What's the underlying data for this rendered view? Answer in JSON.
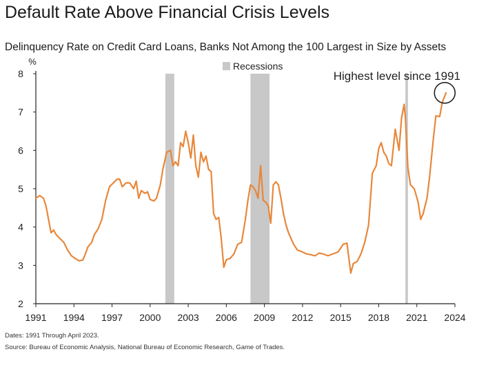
{
  "title": "Default Rate Above Financial Crisis Levels",
  "subtitle": "Delinquency Rate on Credit Card Loans, Banks Not Among the 100 Largest in Size by Assets",
  "notes": {
    "dates": "Dates: 1991 Through April 2023.",
    "source": "Source: Bureau of Economic Analysis, National Bureau of Economic Research, Game of Trades."
  },
  "colors": {
    "line": "#e8873a",
    "recession": "#c8c8c8",
    "axis": "#222222"
  },
  "chart_data": {
    "type": "line",
    "title": "Default Rate Above Financial Crisis Levels",
    "subtitle": "Delinquency Rate on Credit Card Loans, Banks Not Among the 100 Largest in Size by Assets",
    "ylabel": "%",
    "xlabel": "",
    "xlim": [
      1991,
      2024
    ],
    "ylim": [
      2,
      8
    ],
    "x_ticks": [
      1991,
      1994,
      1997,
      2000,
      2003,
      2006,
      2009,
      2012,
      2015,
      2018,
      2021,
      2024
    ],
    "y_ticks": [
      2,
      3,
      4,
      5,
      6,
      7,
      8
    ],
    "grid": false,
    "legend": {
      "position": "top-center",
      "entries": [
        {
          "label": "Recessions",
          "color": "#c8c8c8"
        }
      ]
    },
    "recessions": [
      [
        2001.2,
        2001.9
      ],
      [
        2007.9,
        2009.4
      ],
      [
        2020.1,
        2020.3
      ]
    ],
    "annotation": {
      "text": "Highest level since 1991",
      "x": 2023.2,
      "y": 7.5
    },
    "series": [
      {
        "color": "#e8873a",
        "points": [
          [
            1991.0,
            4.75
          ],
          [
            1991.3,
            4.82
          ],
          [
            1991.6,
            4.75
          ],
          [
            1991.8,
            4.55
          ],
          [
            1992.0,
            4.2
          ],
          [
            1992.2,
            3.85
          ],
          [
            1992.4,
            3.92
          ],
          [
            1992.6,
            3.8
          ],
          [
            1992.9,
            3.7
          ],
          [
            1993.2,
            3.6
          ],
          [
            1993.5,
            3.4
          ],
          [
            1993.8,
            3.25
          ],
          [
            1994.1,
            3.18
          ],
          [
            1994.4,
            3.12
          ],
          [
            1994.7,
            3.14
          ],
          [
            1994.9,
            3.3
          ],
          [
            1995.1,
            3.48
          ],
          [
            1995.4,
            3.6
          ],
          [
            1995.6,
            3.8
          ],
          [
            1995.9,
            3.95
          ],
          [
            1996.2,
            4.2
          ],
          [
            1996.5,
            4.7
          ],
          [
            1996.8,
            5.05
          ],
          [
            1997.1,
            5.15
          ],
          [
            1997.4,
            5.25
          ],
          [
            1997.6,
            5.25
          ],
          [
            1997.8,
            5.05
          ],
          [
            1998.1,
            5.15
          ],
          [
            1998.4,
            5.15
          ],
          [
            1998.7,
            5.0
          ],
          [
            1998.9,
            5.2
          ],
          [
            1999.1,
            4.75
          ],
          [
            1999.3,
            4.95
          ],
          [
            1999.6,
            4.88
          ],
          [
            1999.8,
            4.92
          ],
          [
            2000.0,
            4.72
          ],
          [
            2000.3,
            4.68
          ],
          [
            2000.5,
            4.75
          ],
          [
            2000.8,
            5.1
          ],
          [
            2001.0,
            5.5
          ],
          [
            2001.3,
            5.95
          ],
          [
            2001.6,
            6.0
          ],
          [
            2001.8,
            5.6
          ],
          [
            2002.0,
            5.7
          ],
          [
            2002.2,
            5.6
          ],
          [
            2002.4,
            6.2
          ],
          [
            2002.6,
            6.1
          ],
          [
            2002.8,
            6.5
          ],
          [
            2003.0,
            6.2
          ],
          [
            2003.2,
            5.8
          ],
          [
            2003.4,
            6.4
          ],
          [
            2003.6,
            5.6
          ],
          [
            2003.8,
            5.3
          ],
          [
            2004.0,
            5.95
          ],
          [
            2004.2,
            5.7
          ],
          [
            2004.4,
            5.85
          ],
          [
            2004.6,
            5.5
          ],
          [
            2004.8,
            5.45
          ],
          [
            2005.0,
            4.35
          ],
          [
            2005.2,
            4.2
          ],
          [
            2005.4,
            4.25
          ],
          [
            2005.6,
            3.7
          ],
          [
            2005.8,
            2.95
          ],
          [
            2006.0,
            3.15
          ],
          [
            2006.3,
            3.18
          ],
          [
            2006.6,
            3.3
          ],
          [
            2006.9,
            3.55
          ],
          [
            2007.2,
            3.6
          ],
          [
            2007.5,
            4.2
          ],
          [
            2007.7,
            4.7
          ],
          [
            2007.9,
            5.1
          ],
          [
            2008.1,
            5.05
          ],
          [
            2008.3,
            4.95
          ],
          [
            2008.5,
            4.75
          ],
          [
            2008.7,
            5.6
          ],
          [
            2008.9,
            4.7
          ],
          [
            2009.1,
            4.65
          ],
          [
            2009.3,
            4.55
          ],
          [
            2009.5,
            4.1
          ],
          [
            2009.7,
            5.1
          ],
          [
            2009.9,
            5.18
          ],
          [
            2010.1,
            5.1
          ],
          [
            2010.3,
            4.75
          ],
          [
            2010.5,
            4.35
          ],
          [
            2010.7,
            4.05
          ],
          [
            2010.9,
            3.85
          ],
          [
            2011.1,
            3.7
          ],
          [
            2011.3,
            3.55
          ],
          [
            2011.6,
            3.4
          ],
          [
            2012.0,
            3.35
          ],
          [
            2012.3,
            3.3
          ],
          [
            2012.6,
            3.28
          ],
          [
            2013.0,
            3.25
          ],
          [
            2013.3,
            3.32
          ],
          [
            2013.6,
            3.3
          ],
          [
            2014.0,
            3.25
          ],
          [
            2014.4,
            3.3
          ],
          [
            2014.8,
            3.35
          ],
          [
            2015.2,
            3.55
          ],
          [
            2015.5,
            3.58
          ],
          [
            2015.8,
            2.8
          ],
          [
            2016.0,
            3.05
          ],
          [
            2016.3,
            3.1
          ],
          [
            2016.6,
            3.3
          ],
          [
            2016.9,
            3.6
          ],
          [
            2017.2,
            4.05
          ],
          [
            2017.5,
            5.4
          ],
          [
            2017.8,
            5.6
          ],
          [
            2018.0,
            6.05
          ],
          [
            2018.2,
            6.2
          ],
          [
            2018.4,
            5.95
          ],
          [
            2018.6,
            5.85
          ],
          [
            2018.8,
            5.65
          ],
          [
            2019.0,
            5.6
          ],
          [
            2019.3,
            6.55
          ],
          [
            2019.6,
            6.0
          ],
          [
            2019.8,
            6.85
          ],
          [
            2020.0,
            7.2
          ],
          [
            2020.1,
            6.85
          ],
          [
            2020.3,
            5.55
          ],
          [
            2020.5,
            5.1
          ],
          [
            2020.8,
            5.0
          ],
          [
            2021.1,
            4.65
          ],
          [
            2021.3,
            4.2
          ],
          [
            2021.5,
            4.35
          ],
          [
            2021.8,
            4.75
          ],
          [
            2022.0,
            5.3
          ],
          [
            2022.3,
            6.3
          ],
          [
            2022.5,
            6.9
          ],
          [
            2022.8,
            6.88
          ],
          [
            2023.0,
            7.25
          ],
          [
            2023.3,
            7.5
          ]
        ]
      }
    ]
  }
}
